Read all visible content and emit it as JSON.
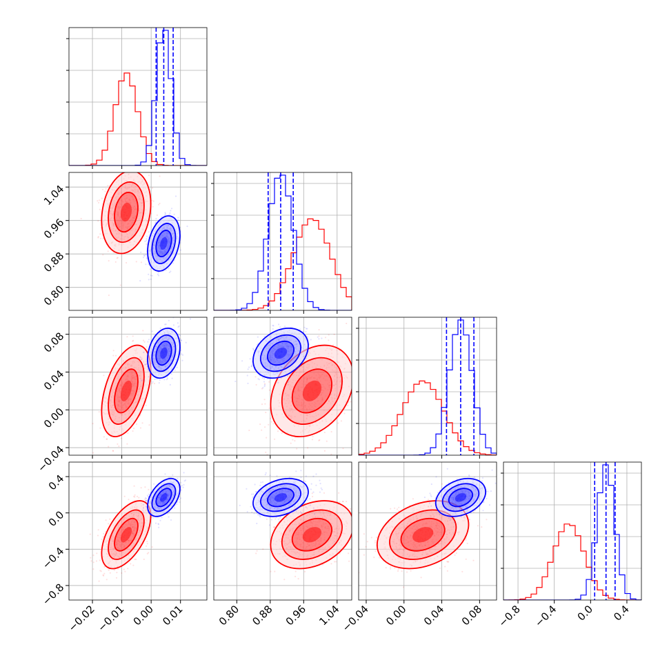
{
  "chart_data": {
    "type": "corner",
    "colors": {
      "red": "#ff0000",
      "blue": "#0000ff",
      "grid": "#b0b0b0"
    },
    "params": [
      {
        "id": "p0",
        "range": [
          -0.028,
          0.019
        ],
        "ticks": [
          -0.02,
          -0.01,
          0.0,
          0.01
        ],
        "tick_labels": [
          "−0.02",
          "−0.01",
          "0.00",
          "0.01"
        ]
      },
      {
        "id": "p1",
        "range": [
          0.745,
          1.075
        ],
        "ticks": [
          0.8,
          0.88,
          0.96,
          1.04
        ],
        "tick_labels": [
          "0.80",
          "0.88",
          "0.96",
          "1.04"
        ]
      },
      {
        "id": "p2",
        "range": [
          -0.048,
          0.098
        ],
        "ticks": [
          -0.04,
          0.0,
          0.04,
          0.08
        ],
        "tick_labels": [
          "−0.04",
          "0.00",
          "0.04",
          "0.08"
        ]
      },
      {
        "id": "p3",
        "range": [
          -0.96,
          0.56
        ],
        "ticks": [
          -0.8,
          -0.4,
          0.0,
          0.4
        ],
        "tick_labels": [
          "−0.8",
          "−0.4",
          "0.0",
          "0.4"
        ]
      }
    ],
    "series": [
      {
        "color": "red",
        "mean": [
          -0.0085,
          0.98,
          0.02,
          -0.24
        ],
        "std": [
          0.0038,
          0.045,
          0.022,
          0.17
        ],
        "corr": [
          0.2,
          0.45,
          0.55
        ]
      },
      {
        "color": "blue",
        "mean": [
          0.0043,
          0.905,
          0.06,
          0.17
        ],
        "std": [
          0.0025,
          0.03,
          0.012,
          0.095
        ],
        "corr": [
          0.3,
          0.25,
          0.45
        ]
      }
    ],
    "quantile_lines": {
      "color": "blue",
      "style": "dashed",
      "values": [
        [
          0.0017,
          0.0043,
          0.0075
        ],
        [
          0.875,
          0.905,
          0.935
        ],
        [
          0.045,
          0.06,
          0.074
        ],
        [
          0.045,
          0.17,
          0.27
        ]
      ]
    },
    "grid": true,
    "contour_levels": 3
  }
}
